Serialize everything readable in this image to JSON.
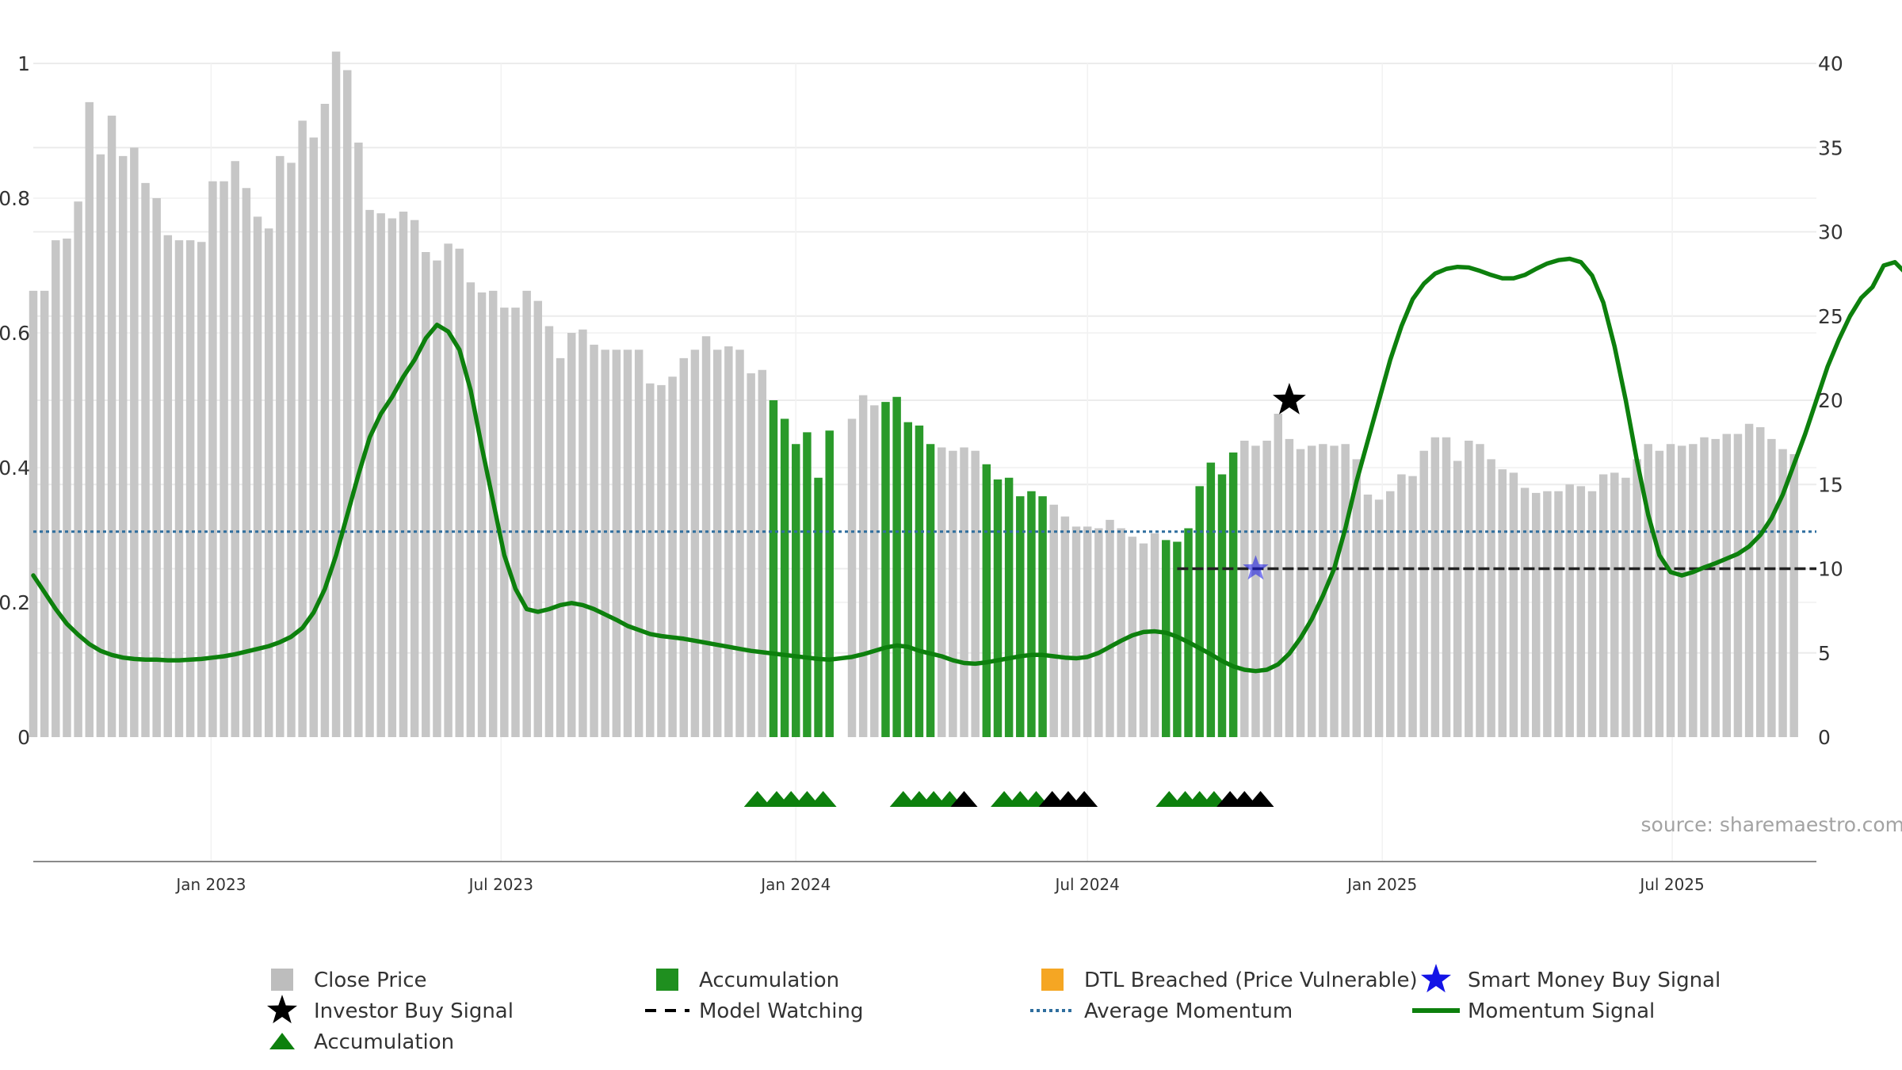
{
  "chart_data": {
    "type": "bar",
    "title": "",
    "source": "source: sharemaestro.com",
    "left_axis": {
      "ylim": [
        0,
        1
      ],
      "ticks": [
        "0",
        "0.2",
        "0.4",
        "0.6",
        "0.8",
        "1"
      ],
      "tick_values": [
        0,
        0.2,
        0.4,
        0.6,
        0.8,
        1
      ]
    },
    "right_axis": {
      "ylim": [
        0,
        40
      ],
      "ticks": [
        "0",
        "5",
        "10",
        "15",
        "20",
        "25",
        "30",
        "35",
        "40"
      ],
      "tick_values": [
        0,
        5,
        10,
        15,
        20,
        25,
        30,
        35,
        40
      ]
    },
    "x_axis": {
      "start": "2022-09-12",
      "end": "2025-09-29",
      "ticks": [
        {
          "label": "Jan 2023",
          "date": "2023-01-01"
        },
        {
          "label": "Jul 2023",
          "date": "2023-07-01"
        },
        {
          "label": "Jan 2024",
          "date": "2024-01-01"
        },
        {
          "label": "Jul 2024",
          "date": "2024-07-01"
        },
        {
          "label": "Jan 2025",
          "date": "2025-01-01"
        },
        {
          "label": "Jul 2025",
          "date": "2025-07-01"
        }
      ]
    },
    "colors": {
      "close_price": "#c6c6c6",
      "accumulation": "#2a9a2a",
      "dtl": "#f5a623",
      "smart_money": "#1414e6",
      "investor": "#000000",
      "model_watching": "#222222",
      "avg_momentum": "#2f6e9e",
      "momentum": "#0d800d",
      "triangle_green": "#0d800d",
      "triangle_black": "#000000"
    },
    "bars": {
      "start": "2022-09-12",
      "interval_days": 7,
      "values": [
        26.5,
        26.5,
        29.5,
        29.6,
        31.8,
        37.7,
        34.6,
        36.9,
        34.5,
        35.0,
        32.9,
        32.0,
        29.8,
        29.5,
        29.5,
        29.4,
        33.0,
        33.0,
        34.2,
        32.6,
        30.9,
        30.2,
        34.5,
        34.1,
        36.6,
        35.6,
        37.6,
        40.7,
        39.6,
        35.3,
        31.3,
        31.1,
        30.8,
        31.2,
        30.7,
        28.8,
        28.3,
        29.3,
        29.0,
        27.0,
        26.4,
        26.5,
        25.5,
        25.5,
        26.5,
        25.9,
        24.4,
        22.5,
        24.0,
        24.2,
        23.3,
        23.0,
        23.0,
        23.0,
        23.0,
        21.0,
        20.9,
        21.4,
        22.5,
        23.0,
        23.8,
        23.0,
        23.2,
        23.0,
        21.6,
        21.8,
        20.0,
        18.9,
        17.4,
        18.1,
        15.4,
        18.2,
        0,
        18.9,
        20.3,
        19.7,
        19.9,
        20.2,
        18.7,
        18.5,
        17.4,
        17.2,
        17.0,
        17.2,
        17.0,
        16.2,
        15.3,
        15.4,
        14.3,
        14.6,
        14.3,
        13.8,
        13.1,
        12.5,
        12.5,
        12.4,
        12.9,
        12.4,
        11.9,
        11.5,
        12.1,
        11.7,
        11.6,
        12.4,
        14.9,
        16.3,
        15.6,
        16.9,
        17.6,
        17.3,
        17.6,
        19.2,
        17.7,
        17.1,
        17.3,
        17.4,
        17.3,
        17.4,
        16.5,
        14.4,
        14.1,
        14.6,
        15.6,
        15.5,
        17.0,
        17.8,
        17.8,
        16.4,
        17.6,
        17.4,
        16.5,
        15.9,
        15.7,
        14.8,
        14.5,
        14.6,
        14.6,
        15.0,
        14.9,
        14.6,
        15.6,
        15.7,
        15.4,
        16.5,
        17.4,
        17.0,
        17.4,
        17.3,
        17.4,
        17.8,
        17.7,
        18.0,
        18.0,
        18.6,
        18.4,
        17.7,
        17.1,
        16.8
      ],
      "accumulation_ranges": [
        [
          66,
          71
        ],
        [
          76,
          80
        ],
        [
          85,
          90
        ],
        [
          101,
          107
        ]
      ]
    },
    "momentum": {
      "start": "2022-09-12",
      "interval_days": 7,
      "values": [
        0.24,
        0.215,
        0.19,
        0.168,
        0.152,
        0.138,
        0.128,
        0.122,
        0.118,
        0.116,
        0.115,
        0.115,
        0.114,
        0.114,
        0.115,
        0.116,
        0.118,
        0.12,
        0.123,
        0.127,
        0.131,
        0.135,
        0.141,
        0.149,
        0.162,
        0.185,
        0.22,
        0.27,
        0.33,
        0.39,
        0.445,
        0.48,
        0.505,
        0.535,
        0.56,
        0.592,
        0.612,
        0.602,
        0.575,
        0.515,
        0.43,
        0.35,
        0.27,
        0.22,
        0.19,
        0.186,
        0.19,
        0.196,
        0.199,
        0.196,
        0.19,
        0.182,
        0.174,
        0.165,
        0.159,
        0.153,
        0.15,
        0.148,
        0.146,
        0.143,
        0.14,
        0.137,
        0.134,
        0.131,
        0.128,
        0.126,
        0.124,
        0.122,
        0.12,
        0.118,
        0.116,
        0.115,
        0.117,
        0.119,
        0.123,
        0.128,
        0.133,
        0.136,
        0.134,
        0.128,
        0.124,
        0.12,
        0.114,
        0.11,
        0.109,
        0.111,
        0.114,
        0.117,
        0.12,
        0.122,
        0.122,
        0.12,
        0.118,
        0.117,
        0.119,
        0.125,
        0.134,
        0.143,
        0.151,
        0.156,
        0.157,
        0.155,
        0.149,
        0.141,
        0.132,
        0.123,
        0.113,
        0.105,
        0.1,
        0.098,
        0.1,
        0.108,
        0.124,
        0.147,
        0.175,
        0.21,
        0.25,
        0.31,
        0.38,
        0.44,
        0.5,
        0.56,
        0.61,
        0.65,
        0.673,
        0.688,
        0.695,
        0.698,
        0.697,
        0.692,
        0.686,
        0.681,
        0.681,
        0.686,
        0.695,
        0.703,
        0.708,
        0.71,
        0.705,
        0.685,
        0.645,
        0.58,
        0.5,
        0.41,
        0.33,
        0.27,
        0.245,
        0.24,
        0.245,
        0.252,
        0.258,
        0.265,
        0.272,
        0.283,
        0.3,
        0.325,
        0.36,
        0.405,
        0.45,
        0.5,
        0.55,
        0.59,
        0.625,
        0.652,
        0.668,
        0.7,
        0.705,
        0.688,
        0.666,
        0.672,
        0.671
      ]
    },
    "average_momentum": 0.305,
    "model_watching": {
      "value": 0.25,
      "start": "2024-08-26",
      "end": "2025-09-29"
    },
    "investor_buy_signal": {
      "date": "2024-11-04",
      "value": 0.5
    },
    "smart_money_buy_signal": {
      "date": "2024-10-14",
      "value": 0.25
    },
    "triangles": {
      "green": [
        "2023-12-08",
        "2023-12-20",
        "2023-12-29",
        "2024-01-08",
        "2024-01-18",
        "2024-03-08",
        "2024-03-18",
        "2024-03-27",
        "2024-04-06",
        "2024-05-10",
        "2024-05-20",
        "2024-05-30",
        "2024-08-21",
        "2024-08-31",
        "2024-09-09",
        "2024-09-18"
      ],
      "black": [
        "2024-04-15",
        "2024-06-09",
        "2024-06-19",
        "2024-06-29",
        "2024-09-28",
        "2024-10-07",
        "2024-10-17"
      ]
    },
    "legend": [
      {
        "label": "Close Price",
        "marker": "square",
        "color": "#bdbdbd"
      },
      {
        "label": "Accumulation",
        "marker": "square",
        "color": "#1f8f1f"
      },
      {
        "label": "DTL Breached (Price Vulnerable)",
        "marker": "square",
        "color": "#f5a623"
      },
      {
        "label": "Smart Money Buy Signal",
        "marker": "star",
        "color": "#1414e6"
      },
      {
        "label": "Investor Buy Signal",
        "marker": "star",
        "color": "#000000"
      },
      {
        "label": "Model Watching",
        "marker": "dash",
        "color": "#000000"
      },
      {
        "label": "Average Momentum",
        "marker": "dot",
        "color": "#2f6e9e"
      },
      {
        "label": "Momentum Signal",
        "marker": "line",
        "color": "#0d800d"
      },
      {
        "label": "Accumulation",
        "marker": "triangle",
        "color": "#0d800d"
      }
    ]
  }
}
